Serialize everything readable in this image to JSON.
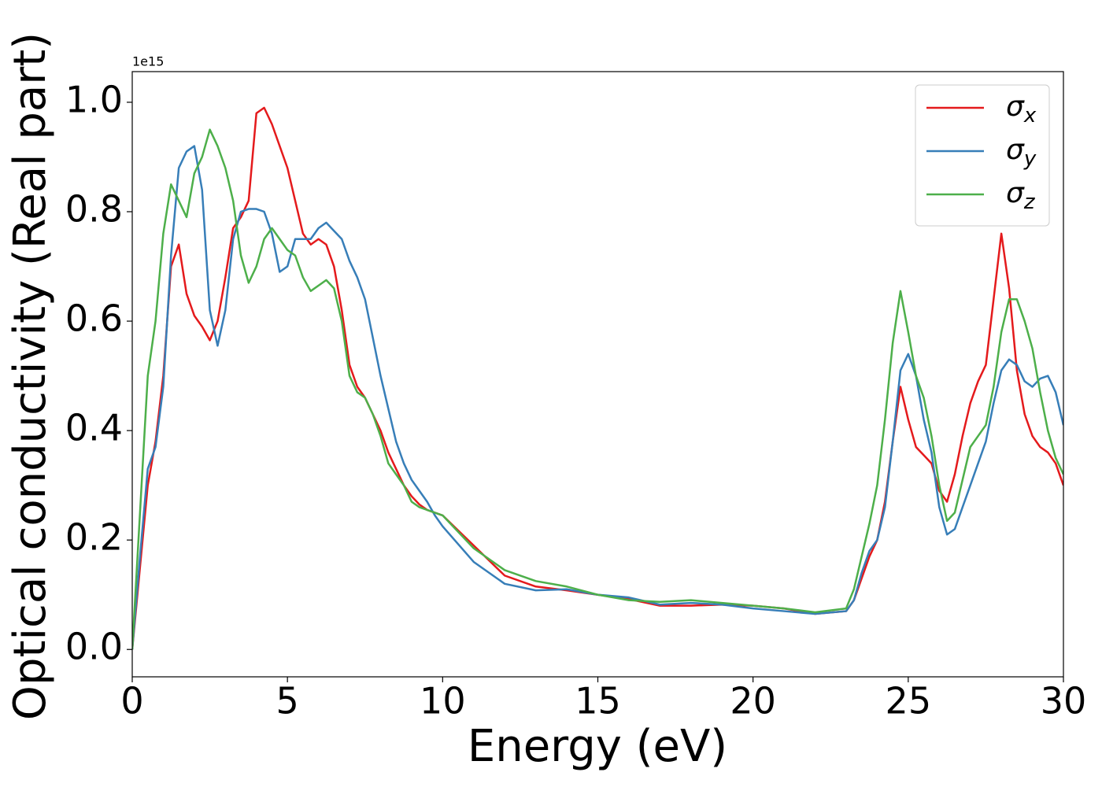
{
  "chart_data": {
    "type": "line",
    "xlabel": "Energy (eV)",
    "ylabel": "Optical conductivity (Real part)",
    "offset_label": "1e15",
    "xlim": [
      0,
      30
    ],
    "xticks": [
      0,
      5,
      10,
      15,
      20,
      25,
      30
    ],
    "ylim": [
      -0.05,
      1.056
    ],
    "yticks": [
      {
        "value": 0,
        "label": "0.0"
      },
      0.2,
      0.4,
      0.6,
      0.8,
      {
        "value": 1,
        "label": "1.0"
      }
    ],
    "grid": false,
    "legend": "upper right",
    "x": [
      0,
      0.25,
      0.5,
      0.75,
      1,
      1.25,
      1.5,
      1.75,
      2,
      2.25,
      2.5,
      2.75,
      3,
      3.25,
      3.5,
      3.75,
      4,
      4.25,
      4.5,
      4.75,
      5,
      5.25,
      5.5,
      5.75,
      6,
      6.25,
      6.5,
      6.75,
      7,
      7.25,
      7.5,
      7.75,
      8,
      8.25,
      8.5,
      8.75,
      9,
      9.25,
      9.5,
      9.75,
      10,
      11,
      12,
      13,
      14,
      15,
      16,
      17,
      18,
      19,
      20,
      21,
      22,
      23,
      23.25,
      23.5,
      23.75,
      24,
      24.25,
      24.5,
      24.75,
      25,
      25.25,
      25.5,
      25.75,
      26,
      26.25,
      26.5,
      26.75,
      27,
      27.25,
      27.5,
      27.75,
      28,
      28.25,
      28.5,
      28.75,
      29,
      29.25,
      29.5,
      29.75,
      30
    ],
    "series": [
      {
        "name": "σx",
        "color": "#e41a1c",
        "values": [
          0,
          0.15,
          0.3,
          0.38,
          0.5,
          0.7,
          0.74,
          0.65,
          0.61,
          0.59,
          0.565,
          0.6,
          0.68,
          0.77,
          0.79,
          0.82,
          0.98,
          0.99,
          0.96,
          0.92,
          0.88,
          0.82,
          0.76,
          0.74,
          0.75,
          0.74,
          0.7,
          0.62,
          0.52,
          0.48,
          0.46,
          0.43,
          0.4,
          0.36,
          0.33,
          0.3,
          0.28,
          0.265,
          0.255,
          0.25,
          0.245,
          0.19,
          0.135,
          0.115,
          0.108,
          0.1,
          0.092,
          0.08,
          0.08,
          0.082,
          0.08,
          0.075,
          0.065,
          0.07,
          0.09,
          0.13,
          0.17,
          0.2,
          0.27,
          0.38,
          0.48,
          0.42,
          0.37,
          0.355,
          0.34,
          0.29,
          0.27,
          0.32,
          0.39,
          0.45,
          0.49,
          0.52,
          0.64,
          0.76,
          0.66,
          0.51,
          0.43,
          0.39,
          0.37,
          0.36,
          0.34,
          0.3
        ]
      },
      {
        "name": "σy",
        "color": "#377eb8",
        "values": [
          0,
          0.17,
          0.33,
          0.37,
          0.48,
          0.72,
          0.88,
          0.91,
          0.92,
          0.84,
          0.62,
          0.555,
          0.62,
          0.75,
          0.8,
          0.805,
          0.805,
          0.8,
          0.76,
          0.69,
          0.7,
          0.75,
          0.75,
          0.75,
          0.77,
          0.78,
          0.765,
          0.75,
          0.71,
          0.68,
          0.64,
          0.57,
          0.5,
          0.44,
          0.38,
          0.34,
          0.31,
          0.29,
          0.27,
          0.245,
          0.225,
          0.16,
          0.12,
          0.108,
          0.11,
          0.1,
          0.095,
          0.082,
          0.085,
          0.082,
          0.075,
          0.07,
          0.065,
          0.07,
          0.09,
          0.14,
          0.18,
          0.2,
          0.26,
          0.38,
          0.51,
          0.54,
          0.5,
          0.42,
          0.36,
          0.26,
          0.21,
          0.22,
          0.26,
          0.3,
          0.34,
          0.38,
          0.45,
          0.51,
          0.53,
          0.52,
          0.49,
          0.48,
          0.495,
          0.5,
          0.47,
          0.41
        ]
      },
      {
        "name": "σz",
        "color": "#4daf4a",
        "values": [
          0,
          0.25,
          0.5,
          0.6,
          0.76,
          0.85,
          0.82,
          0.79,
          0.87,
          0.9,
          0.95,
          0.92,
          0.88,
          0.82,
          0.72,
          0.67,
          0.7,
          0.75,
          0.77,
          0.75,
          0.73,
          0.72,
          0.68,
          0.655,
          0.665,
          0.675,
          0.66,
          0.6,
          0.5,
          0.47,
          0.46,
          0.43,
          0.39,
          0.34,
          0.32,
          0.3,
          0.27,
          0.26,
          0.255,
          0.25,
          0.245,
          0.185,
          0.145,
          0.125,
          0.115,
          0.1,
          0.09,
          0.087,
          0.09,
          0.085,
          0.08,
          0.075,
          0.068,
          0.075,
          0.11,
          0.17,
          0.23,
          0.3,
          0.42,
          0.56,
          0.655,
          0.58,
          0.5,
          0.46,
          0.39,
          0.3,
          0.235,
          0.25,
          0.31,
          0.37,
          0.39,
          0.41,
          0.48,
          0.58,
          0.64,
          0.64,
          0.6,
          0.55,
          0.47,
          0.4,
          0.35,
          0.32
        ]
      }
    ]
  }
}
